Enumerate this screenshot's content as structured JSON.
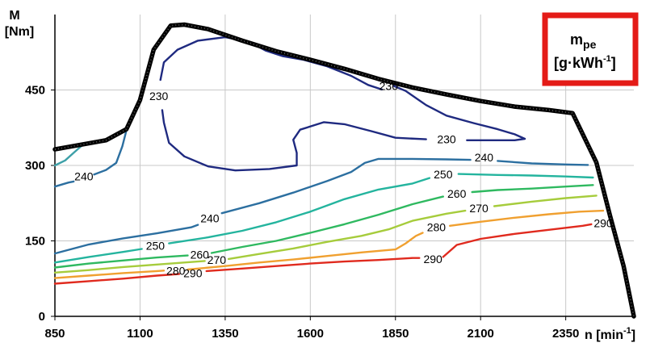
{
  "chart_data": {
    "type": "contour",
    "y_axis_label_line1": "M",
    "y_axis_label_line2": "[Nm]",
    "x_axis_label": "n [min",
    "x_axis_label_sup": "-1",
    "x_axis_label_end": "]",
    "unit_box": {
      "line1": "m",
      "line1_sub": "pe",
      "line2": "[g·kWh",
      "line2_sup": "-1",
      "line2_end": "]",
      "border_color": "#e41b17"
    },
    "xlim": [
      850,
      2550
    ],
    "ylim": [
      0,
      600
    ],
    "x_ticks": [
      "850",
      "1100",
      "1350",
      "1600",
      "1850",
      "2100",
      "2350"
    ],
    "y_ticks": [
      "0",
      "150",
      "300",
      "450"
    ],
    "grid": true,
    "max_torque_curve": [
      [
        850,
        332
      ],
      [
        1000,
        350
      ],
      [
        1060,
        372
      ],
      [
        1100,
        430
      ],
      [
        1140,
        530
      ],
      [
        1190,
        578
      ],
      [
        1230,
        580
      ],
      [
        1300,
        571
      ],
      [
        1400,
        548
      ],
      [
        1500,
        527
      ],
      [
        1600,
        510
      ],
      [
        1700,
        492
      ],
      [
        1800,
        472
      ],
      [
        1900,
        455
      ],
      [
        2000,
        441
      ],
      [
        2100,
        428
      ],
      [
        2200,
        417
      ],
      [
        2300,
        410
      ],
      [
        2370,
        404
      ],
      [
        2440,
        306
      ],
      [
        2480,
        200
      ],
      [
        2520,
        100
      ],
      [
        2550,
        0
      ]
    ],
    "contours": [
      {
        "level": "230",
        "color": "#1f2a80",
        "labels": [
          [
            1155,
            438
          ],
          [
            1830,
            458
          ],
          [
            2000,
            352
          ]
        ],
        "points": [
          [
            1160,
            470
          ],
          [
            1170,
            505
          ],
          [
            1210,
            530
          ],
          [
            1270,
            548
          ],
          [
            1350,
            555
          ],
          [
            1420,
            546
          ],
          [
            1470,
            528
          ],
          [
            1520,
            517
          ],
          [
            1580,
            510
          ],
          [
            1650,
            497
          ],
          [
            1720,
            478
          ],
          [
            1770,
            460
          ],
          [
            1810,
            451
          ]
        ]
      },
      {
        "level": "230",
        "color": "#1f2a80",
        "labels": [],
        "points": [
          [
            1845,
            458
          ],
          [
            1880,
            448
          ],
          [
            1940,
            420
          ],
          [
            2000,
            399
          ],
          [
            2080,
            384
          ],
          [
            2150,
            372
          ],
          [
            2200,
            362
          ],
          [
            2230,
            353
          ],
          [
            2200,
            350
          ],
          [
            2060,
            350
          ]
        ]
      },
      {
        "level": "230",
        "color": "#1f2a80",
        "labels": [],
        "points": [
          [
            1940,
            352
          ],
          [
            1850,
            355
          ],
          [
            1780,
            368
          ],
          [
            1700,
            382
          ],
          [
            1640,
            386
          ],
          [
            1570,
            371
          ],
          [
            1550,
            351
          ],
          [
            1560,
            325
          ],
          [
            1560,
            300
          ],
          [
            1480,
            293
          ],
          [
            1380,
            290
          ],
          [
            1300,
            298
          ],
          [
            1230,
            318
          ],
          [
            1185,
            345
          ],
          [
            1170,
            385
          ],
          [
            1165,
            410
          ]
        ]
      },
      {
        "level": "240",
        "color": "#2c6fa0",
        "labels": [
          [
            935,
            278
          ],
          [
            1305,
            195
          ],
          [
            2110,
            316
          ]
        ],
        "points": [
          [
            850,
            258
          ],
          [
            890,
            266
          ],
          [
            905,
            268
          ]
        ]
      },
      {
        "level": "240",
        "color": "#2c6fa0",
        "labels": [],
        "points": [
          [
            965,
            282
          ],
          [
            1000,
            291
          ],
          [
            1030,
            305
          ],
          [
            1048,
            338
          ],
          [
            1060,
            370
          ]
        ]
      },
      {
        "level": "240",
        "color": "#2c6fa0",
        "labels": [],
        "points": [
          [
            850,
            125
          ],
          [
            950,
            143
          ],
          [
            1050,
            155
          ],
          [
            1150,
            165
          ],
          [
            1250,
            177
          ],
          [
            1270,
            182
          ]
        ]
      },
      {
        "level": "240",
        "color": "#2c6fa0",
        "labels": [],
        "points": [
          [
            1340,
            205
          ],
          [
            1450,
            225
          ],
          [
            1550,
            246
          ],
          [
            1650,
            269
          ],
          [
            1720,
            287
          ],
          [
            1760,
            305
          ],
          [
            1800,
            313
          ],
          [
            1900,
            313
          ],
          [
            2000,
            312
          ],
          [
            2070,
            311
          ]
        ]
      },
      {
        "level": "240",
        "color": "#2c6fa0",
        "labels": [],
        "points": [
          [
            2150,
            309
          ],
          [
            2250,
            304
          ],
          [
            2350,
            302
          ],
          [
            2415,
            301
          ]
        ]
      },
      {
        "level": "240",
        "color": "#3da0a8",
        "labels": [],
        "points": [
          [
            850,
            300
          ],
          [
            880,
            310
          ],
          [
            905,
            325
          ],
          [
            930,
            340
          ]
        ]
      },
      {
        "level": "250",
        "color": "#24b49e",
        "labels": [
          [
            1145,
            140
          ],
          [
            1990,
            282
          ]
        ],
        "points": [
          [
            850,
            107
          ],
          [
            950,
            118
          ],
          [
            1050,
            128
          ],
          [
            1105,
            134
          ]
        ]
      },
      {
        "level": "250",
        "color": "#24b49e",
        "labels": [],
        "points": [
          [
            1185,
            145
          ],
          [
            1300,
            157
          ],
          [
            1400,
            170
          ],
          [
            1500,
            187
          ],
          [
            1600,
            208
          ],
          [
            1700,
            233
          ],
          [
            1800,
            252
          ],
          [
            1900,
            264
          ],
          [
            1950,
            275
          ]
        ]
      },
      {
        "level": "250",
        "color": "#24b49e",
        "labels": [],
        "points": [
          [
            2035,
            283
          ],
          [
            2150,
            281
          ],
          [
            2250,
            280
          ],
          [
            2350,
            278
          ],
          [
            2430,
            276
          ]
        ]
      },
      {
        "level": "260",
        "color": "#2fb960",
        "labels": [
          [
            1275,
            123
          ],
          [
            2030,
            244
          ]
        ],
        "points": [
          [
            850,
            97
          ],
          [
            950,
            105
          ],
          [
            1050,
            111
          ],
          [
            1150,
            117
          ],
          [
            1240,
            121
          ]
        ]
      },
      {
        "level": "260",
        "color": "#2fb960",
        "labels": [],
        "points": [
          [
            1310,
            126
          ],
          [
            1400,
            138
          ],
          [
            1500,
            150
          ],
          [
            1600,
            166
          ],
          [
            1700,
            183
          ],
          [
            1800,
            202
          ],
          [
            1900,
            223
          ],
          [
            1990,
            238
          ]
        ]
      },
      {
        "level": "260",
        "color": "#2fb960",
        "labels": [],
        "points": [
          [
            2075,
            247
          ],
          [
            2150,
            251
          ],
          [
            2250,
            254
          ],
          [
            2350,
            258
          ],
          [
            2430,
            261
          ]
        ]
      },
      {
        "level": "270",
        "color": "#a6cc3c",
        "labels": [
          [
            1325,
            112
          ],
          [
            2095,
            215
          ]
        ],
        "points": [
          [
            850,
            87
          ],
          [
            950,
            92
          ],
          [
            1050,
            98
          ],
          [
            1150,
            103
          ],
          [
            1250,
            108
          ],
          [
            1290,
            110
          ]
        ]
      },
      {
        "level": "270",
        "color": "#a6cc3c",
        "labels": [],
        "points": [
          [
            1360,
            114
          ],
          [
            1450,
            124
          ],
          [
            1550,
            135
          ],
          [
            1650,
            148
          ],
          [
            1750,
            160
          ],
          [
            1830,
            173
          ],
          [
            1900,
            190
          ],
          [
            2000,
            204
          ],
          [
            2055,
            210
          ]
        ]
      },
      {
        "level": "270",
        "color": "#a6cc3c",
        "labels": [],
        "points": [
          [
            2140,
            219
          ],
          [
            2250,
            228
          ],
          [
            2350,
            235
          ],
          [
            2440,
            240
          ]
        ]
      },
      {
        "level": "280",
        "color": "#f0a030",
        "labels": [
          [
            1205,
            91
          ],
          [
            1970,
            177
          ]
        ],
        "points": [
          [
            850,
            76
          ],
          [
            950,
            81
          ],
          [
            1050,
            86
          ],
          [
            1150,
            90
          ],
          [
            1170,
            91
          ]
        ]
      },
      {
        "level": "280",
        "color": "#f0a030",
        "labels": [],
        "points": [
          [
            1240,
            93
          ],
          [
            1350,
            100
          ],
          [
            1450,
            107
          ],
          [
            1550,
            113
          ],
          [
            1650,
            120
          ],
          [
            1750,
            127
          ],
          [
            1850,
            133
          ],
          [
            1880,
            145
          ],
          [
            1910,
            160
          ],
          [
            1930,
            166
          ]
        ]
      },
      {
        "level": "280",
        "color": "#f0a030",
        "labels": [],
        "points": [
          [
            2010,
            180
          ],
          [
            2100,
            188
          ],
          [
            2200,
            196
          ],
          [
            2300,
            203
          ],
          [
            2390,
            208
          ],
          [
            2460,
            210
          ]
        ]
      },
      {
        "level": "290",
        "color": "#e02a1e",
        "labels": [
          [
            1255,
            86
          ],
          [
            1960,
            114
          ],
          [
            2460,
            185
          ]
        ],
        "points": [
          [
            850,
            65
          ],
          [
            950,
            70
          ],
          [
            1050,
            75
          ],
          [
            1150,
            81
          ],
          [
            1215,
            84
          ]
        ]
      },
      {
        "level": "290",
        "color": "#e02a1e",
        "labels": [],
        "points": [
          [
            1295,
            90
          ],
          [
            1400,
            95
          ],
          [
            1500,
            100
          ],
          [
            1600,
            105
          ],
          [
            1700,
            109
          ],
          [
            1800,
            112
          ],
          [
            1900,
            116
          ],
          [
            1920,
            116
          ]
        ]
      },
      {
        "level": "290",
        "color": "#e02a1e",
        "labels": [],
        "points": [
          [
            1990,
            118
          ],
          [
            2010,
            130
          ],
          [
            2030,
            142
          ],
          [
            2100,
            154
          ],
          [
            2200,
            164
          ],
          [
            2300,
            172
          ],
          [
            2400,
            180
          ],
          [
            2425,
            183
          ]
        ]
      }
    ]
  }
}
